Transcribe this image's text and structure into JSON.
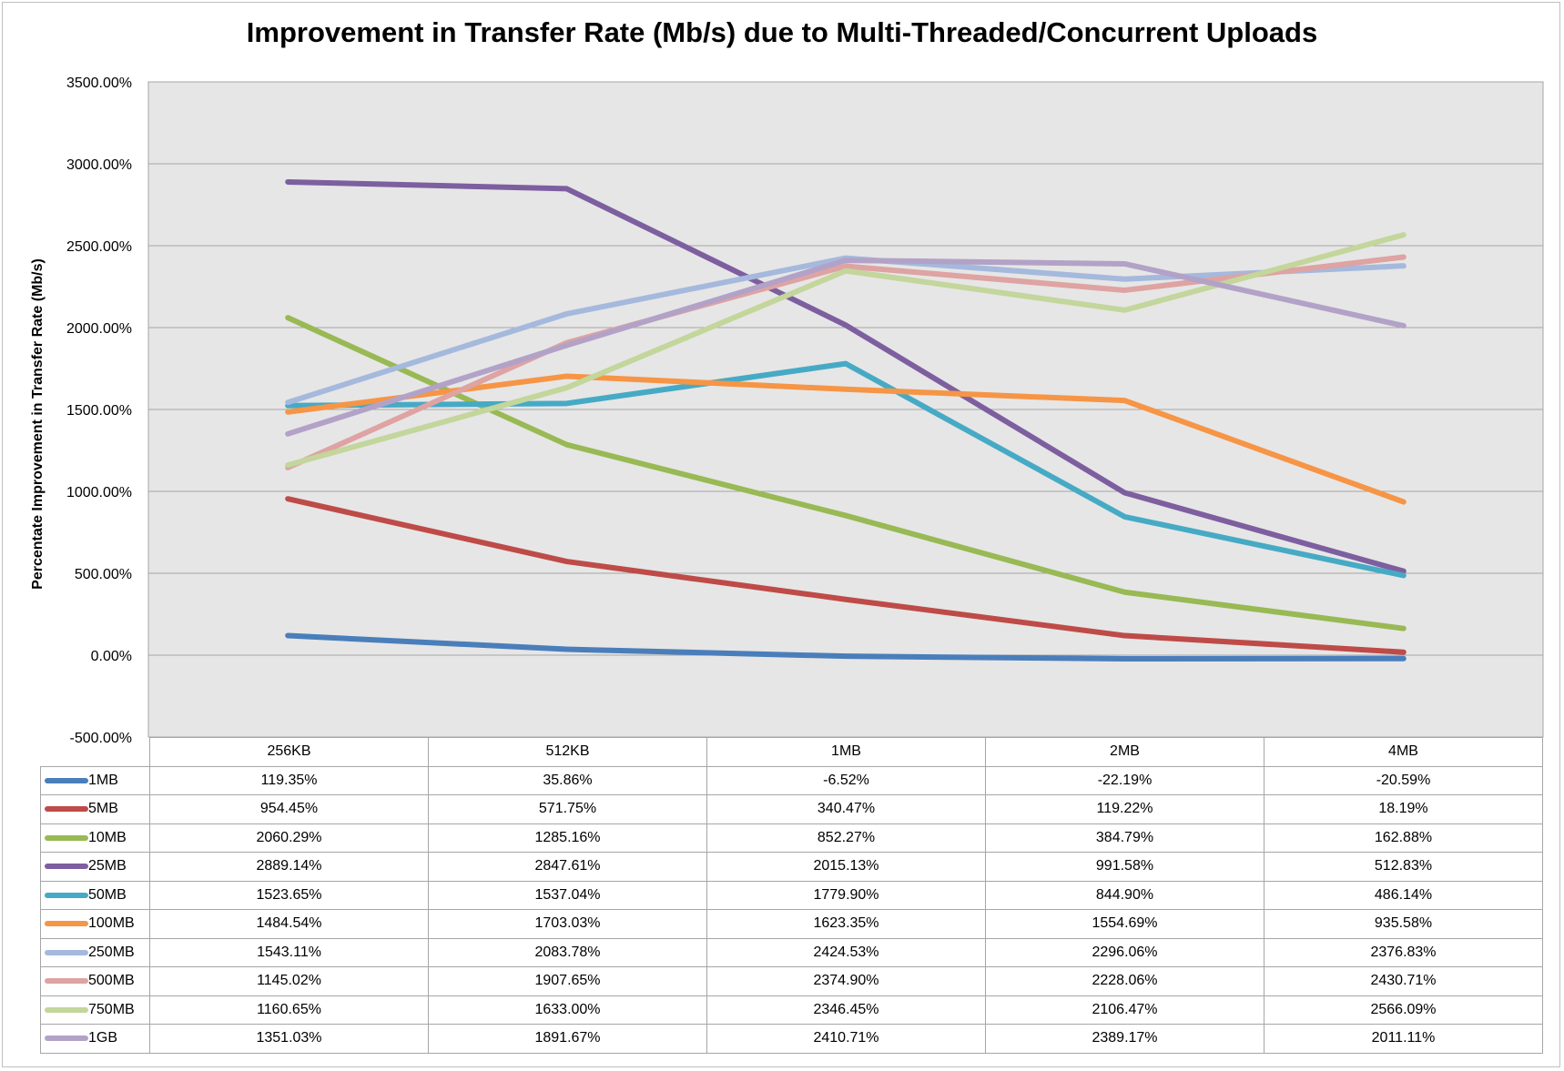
{
  "chart_data": {
    "type": "line",
    "title": "Improvement in Transfer Rate (Mb/s) due to Multi-Threaded/Concurrent Uploads",
    "xlabel": "",
    "ylabel": "Percentate Improvement in Transfer Rate (Mb/s)",
    "categories": [
      "256KB",
      "512KB",
      "1MB",
      "2MB",
      "4MB"
    ],
    "ylim": [
      -500,
      3500
    ],
    "yticks": [
      "-500.00%",
      "0.00%",
      "500.00%",
      "1000.00%",
      "1500.00%",
      "2000.00%",
      "2500.00%",
      "3000.00%",
      "3500.00%"
    ],
    "grid": true,
    "legend": "data table below chart",
    "series": [
      {
        "name": "1MB",
        "color": "#4a7ebb",
        "values": [
          119.35,
          35.86,
          -6.52,
          -22.19,
          -20.59
        ],
        "labels": [
          "119.35%",
          "35.86%",
          "-6.52%",
          "-22.19%",
          "-20.59%"
        ]
      },
      {
        "name": "5MB",
        "color": "#be4b48",
        "values": [
          954.45,
          571.75,
          340.47,
          119.22,
          18.19
        ],
        "labels": [
          "954.45%",
          "571.75%",
          "340.47%",
          "119.22%",
          "18.19%"
        ]
      },
      {
        "name": "10MB",
        "color": "#98b954",
        "values": [
          2060.29,
          1285.16,
          852.27,
          384.79,
          162.88
        ],
        "labels": [
          "2060.29%",
          "1285.16%",
          "852.27%",
          "384.79%",
          "162.88%"
        ]
      },
      {
        "name": "25MB",
        "color": "#7d5fa0",
        "values": [
          2889.14,
          2847.61,
          2015.13,
          991.58,
          512.83
        ],
        "labels": [
          "2889.14%",
          "2847.61%",
          "2015.13%",
          "991.58%",
          "512.83%"
        ]
      },
      {
        "name": "50MB",
        "color": "#46aac5",
        "values": [
          1523.65,
          1537.04,
          1779.9,
          844.9,
          486.14
        ],
        "labels": [
          "1523.65%",
          "1537.04%",
          "1779.90%",
          "844.90%",
          "486.14%"
        ]
      },
      {
        "name": "100MB",
        "color": "#f69545",
        "values": [
          1484.54,
          1703.03,
          1623.35,
          1554.69,
          935.58
        ],
        "labels": [
          "1484.54%",
          "1703.03%",
          "1623.35%",
          "1554.69%",
          "935.58%"
        ]
      },
      {
        "name": "250MB",
        "color": "#a5b9dd",
        "values": [
          1543.11,
          2083.78,
          2424.53,
          2296.06,
          2376.83
        ],
        "labels": [
          "1543.11%",
          "2083.78%",
          "2424.53%",
          "2296.06%",
          "2376.83%"
        ]
      },
      {
        "name": "500MB",
        "color": "#dea3a2",
        "values": [
          1145.02,
          1907.65,
          2374.9,
          2228.06,
          2430.71
        ],
        "labels": [
          "1145.02%",
          "1907.65%",
          "2374.90%",
          "2228.06%",
          "2430.71%"
        ]
      },
      {
        "name": "750MB",
        "color": "#c3d69b",
        "values": [
          1160.65,
          1633.0,
          2346.45,
          2106.47,
          2566.09
        ],
        "labels": [
          "1160.65%",
          "1633.00%",
          "2346.45%",
          "2106.47%",
          "2566.09%"
        ]
      },
      {
        "name": "1GB",
        "color": "#b3a2c7",
        "values": [
          1351.03,
          1891.67,
          2410.71,
          2389.17,
          2011.11
        ],
        "labels": [
          "1351.03%",
          "1891.67%",
          "2410.71%",
          "2389.17%",
          "2011.11%"
        ]
      }
    ]
  }
}
